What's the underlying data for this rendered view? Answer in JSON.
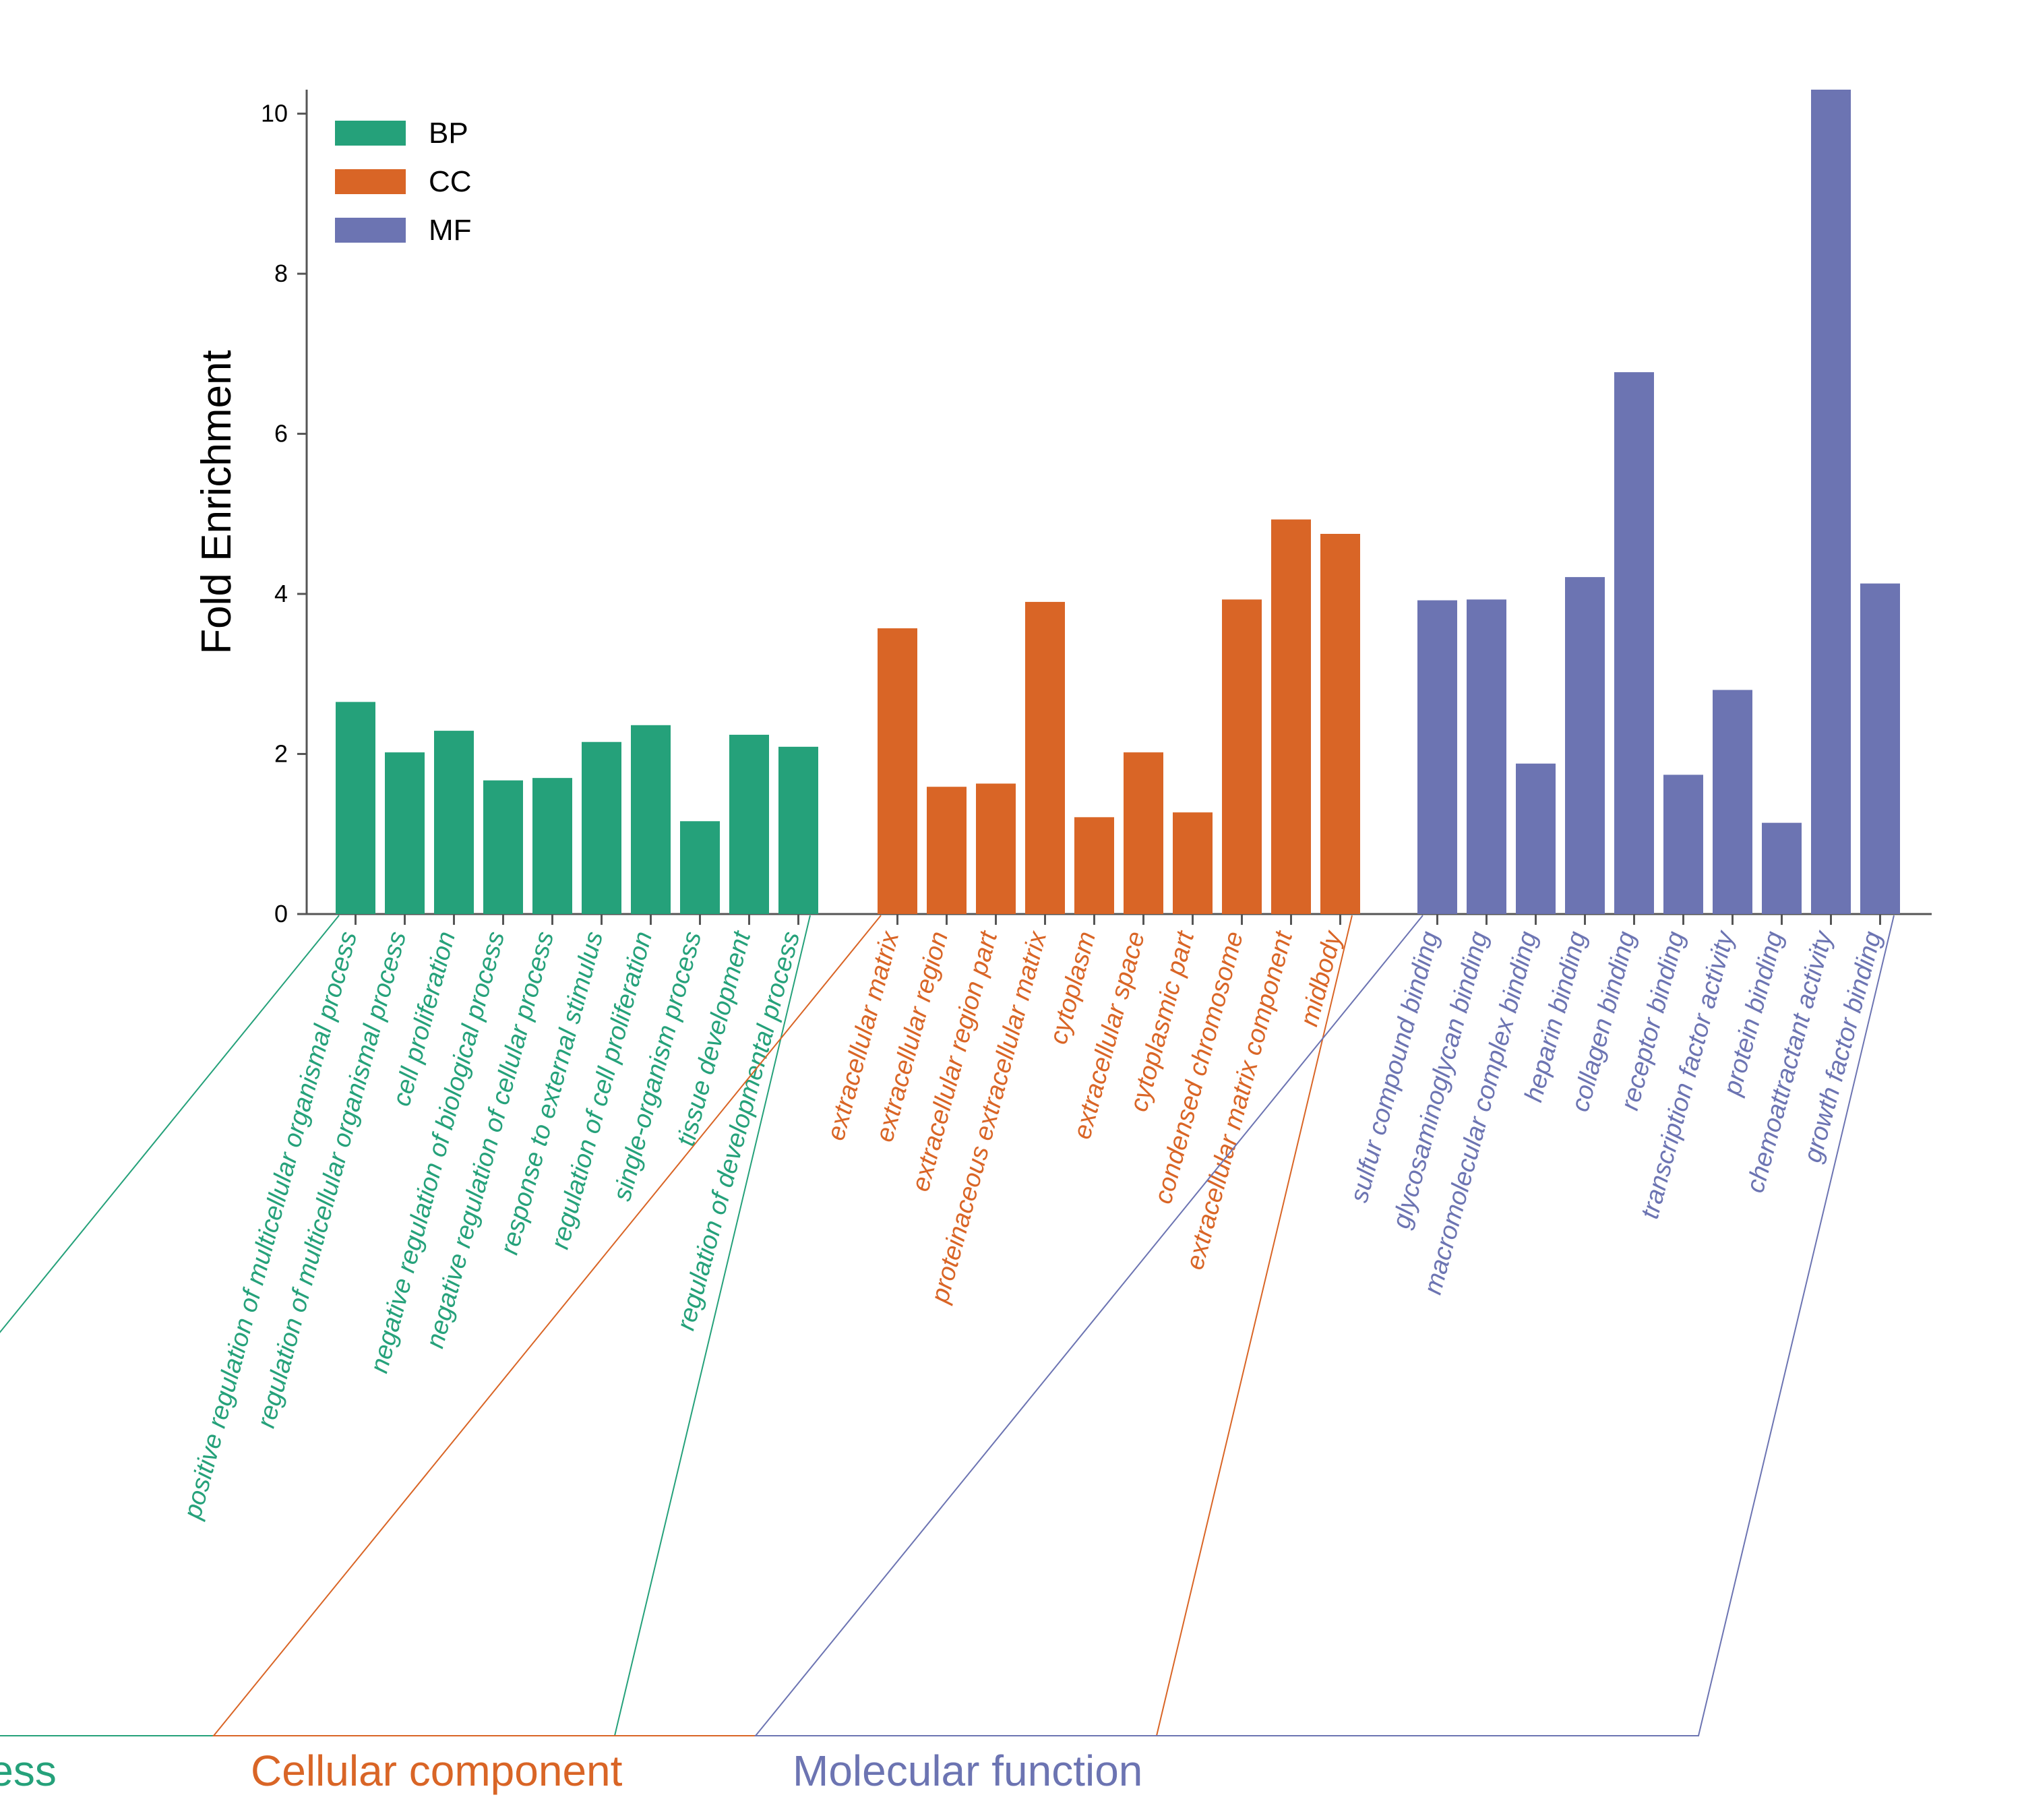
{
  "chart_data": {
    "type": "bar",
    "title": "",
    "xlabel": "",
    "ylabel": "Fold Enrichment",
    "ylim": [
      0,
      10.3
    ],
    "yticks": [
      0,
      2,
      4,
      6,
      8,
      10
    ],
    "grid": false,
    "legend": {
      "placement": "top-left",
      "entries": [
        {
          "name": "BP",
          "color": "#25a17a"
        },
        {
          "name": "CC",
          "color": "#d96526"
        },
        {
          "name": "MF",
          "color": "#6c74b2"
        }
      ]
    },
    "groups": [
      {
        "name": "BP",
        "label": "Biological process",
        "color": "#25a17a",
        "categories": [
          "positive regulation of multicellular organismal process",
          "regulation of multicellular organismal process",
          "cell proliferation",
          "negative regulation of biological process",
          "negative regulation of cellular process",
          "response to external stimulus",
          "regulation of cell proliferation",
          "single-organism process",
          "tissue development",
          "regulation of developmental process"
        ],
        "values": [
          2.65,
          2.02,
          2.29,
          1.67,
          1.7,
          2.15,
          2.36,
          1.16,
          2.24,
          2.09
        ]
      },
      {
        "name": "CC",
        "label": "Cellular component",
        "color": "#d96526",
        "categories": [
          "extracellular matrix",
          "extracellular region",
          "extracellular region part",
          "proteinaceous extracellular matrix",
          "cytoplasm",
          "extracellular space",
          "cytoplasmic part",
          "condensed chromosome",
          "extracellular matrix component",
          "midbody"
        ],
        "values": [
          3.57,
          1.59,
          1.63,
          3.9,
          1.21,
          2.02,
          1.27,
          3.93,
          4.93,
          4.75
        ]
      },
      {
        "name": "MF",
        "label": "Molecular function",
        "color": "#6c74b2",
        "categories": [
          "sulfur compound binding",
          "glycosaminoglycan binding",
          "macromolecular complex binding",
          "heparin binding",
          "collagen binding",
          "receptor binding",
          "transcription factor activity",
          "protein binding",
          "chemoattractant activity",
          "growth factor binding"
        ],
        "values": [
          3.92,
          3.93,
          1.88,
          4.21,
          6.77,
          1.74,
          2.8,
          1.14,
          10.3,
          4.13
        ]
      }
    ]
  }
}
